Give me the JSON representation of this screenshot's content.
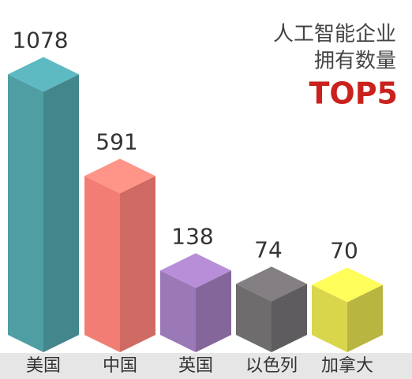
{
  "chart_data": {
    "type": "bar3d",
    "title": [
      "人工智能企业",
      "拥有数量"
    ],
    "subtitle": "TOP5",
    "categories": [
      "美国",
      "中国",
      "英国",
      "以色列",
      "加拿大"
    ],
    "values": [
      1078,
      591,
      138,
      74,
      70
    ],
    "colors": [
      "#4f9ea4",
      "#f27d74",
      "#9b78b6",
      "#6f6c6e",
      "#d9d64c"
    ]
  }
}
